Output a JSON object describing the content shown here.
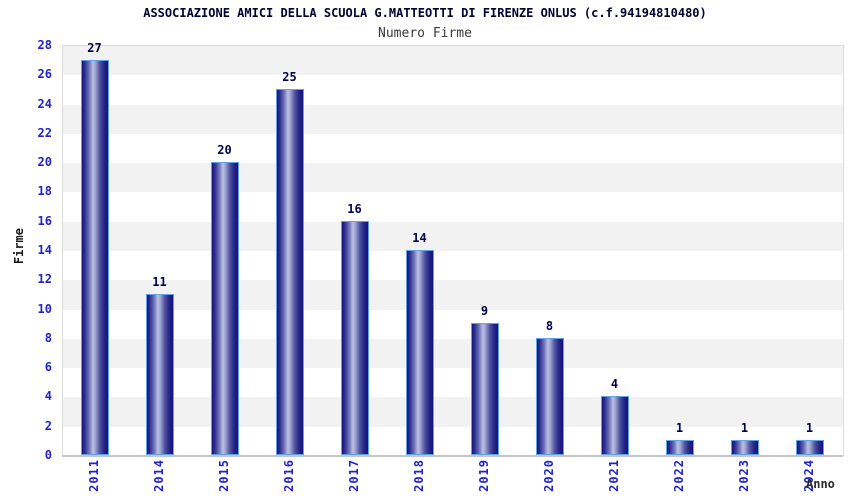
{
  "header": {
    "title": "ASSOCIAZIONE AMICI DELLA SCUOLA G.MATTEOTTI DI FIRENZE ONLUS (c.f.94194810480)",
    "subtitle": "Numero Firme"
  },
  "chart_data": {
    "type": "bar",
    "title": "Numero Firme",
    "categories": [
      "2011",
      "2014",
      "2015",
      "2016",
      "2017",
      "2018",
      "2019",
      "2020",
      "2021",
      "2022",
      "2023",
      "2024"
    ],
    "values": [
      27,
      11,
      20,
      25,
      16,
      14,
      9,
      8,
      4,
      1,
      1,
      1
    ],
    "xlabel": "Anno",
    "ylabel": "Firme",
    "ylim": [
      0,
      28
    ],
    "ytick_step": 2,
    "legend": "none",
    "grid": "alternating horizontal bands every 2 units, gray band at 26-28 down to 2-4",
    "colors": {
      "tick_label": "#2222cc",
      "value_label": "#000050",
      "title": "#000033",
      "subtitle": "#3a3a3a",
      "bar_dark": "#14147a",
      "bar_light": "#bcc0e4",
      "bar_border": "#5ea2e8",
      "band_gray": "#f2f2f2",
      "plot_border": "#dcdcdc",
      "axis_line": "#c6c6c6"
    }
  }
}
